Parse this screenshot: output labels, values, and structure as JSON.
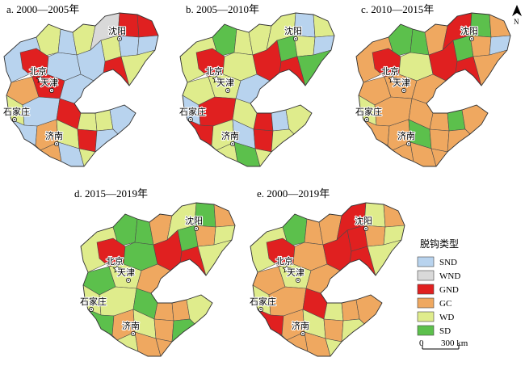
{
  "panels": [
    {
      "title": "a. 2000—2005年"
    },
    {
      "title": "b. 2005—2010年"
    },
    {
      "title": "c. 2010—2015年"
    },
    {
      "title": "d. 2015—2019年"
    },
    {
      "title": "e. 2000—2019年"
    }
  ],
  "cities": {
    "beijing": "北京",
    "tianjin": "天津",
    "shijiazhuang": "石家庄",
    "jinan": "济南",
    "shenyang": "沈阳"
  },
  "legend": {
    "title": "脱钩类型",
    "items": [
      {
        "label": "SND",
        "color": "#b8d3ee"
      },
      {
        "label": "WND",
        "color": "#d9d9d9"
      },
      {
        "label": "GND",
        "color": "#e02020"
      },
      {
        "label": "GC",
        "color": "#efa860"
      },
      {
        "label": "WD",
        "color": "#dfec8c"
      },
      {
        "label": "SD",
        "color": "#5cc04c"
      }
    ]
  },
  "scale_bar": {
    "zero": "0",
    "distance": "300 km"
  },
  "north_arrow": {
    "label": "N"
  },
  "region_colors": {
    "a": [
      "SND",
      "WD",
      "GND",
      "SND",
      "WD",
      "WND",
      "GND",
      "GND",
      "WD",
      "SND",
      "SND",
      "GND",
      "WD",
      "SND",
      "SND",
      "GC",
      "GND",
      "SND",
      "WD",
      "SND",
      "GND",
      "WD",
      "WD",
      "SND",
      "SND",
      "GC",
      "WD",
      "GND",
      "SND",
      "GC",
      "SND",
      "WD"
    ],
    "b": [
      "WD",
      "SD",
      "GND",
      "WD",
      "WD",
      "WD",
      "SND",
      "WD",
      "SD",
      "WD",
      "SND",
      "GND",
      "SD",
      "WD",
      "GND",
      "WD",
      "WD",
      "SND",
      "SND",
      "GND",
      "WD",
      "GND",
      "SND",
      "WD",
      "GND",
      "WD",
      "SND",
      "GND",
      "WD",
      "WD",
      "SD",
      "WD"
    ],
    "c": [
      "GC",
      "SD",
      "GND",
      "SD",
      "GC",
      "GND",
      "SD",
      "GC",
      "SD",
      "GC",
      "SND",
      "GND",
      "GC",
      "WD",
      "GND",
      "GC",
      "GC",
      "GC",
      "WD",
      "GC",
      "GC",
      "GC",
      "SD",
      "GC",
      "GC",
      "GC",
      "SD",
      "GC",
      "GC",
      "GC",
      "GC",
      "GC"
    ],
    "d": [
      "WD",
      "SD",
      "GND",
      "SD",
      "GC",
      "WD",
      "SD",
      "GC",
      "SD",
      "GC",
      "WD",
      "GND",
      "WD",
      "SD",
      "GND",
      "SD",
      "WD",
      "GC",
      "WD",
      "WD",
      "SD",
      "GC",
      "GC",
      "WD",
      "SD",
      "GC",
      "WD",
      "GC",
      "SD",
      "WD",
      "GC",
      "GC"
    ],
    "e": [
      "WD",
      "SD",
      "GND",
      "GC",
      "GC",
      "GND",
      "WD",
      "GC",
      "GND",
      "GC",
      "WD",
      "GND",
      "WD",
      "GC",
      "GND",
      "GC",
      "WD",
      "GC",
      "WD",
      "GC",
      "GND",
      "WD",
      "GC",
      "GC",
      "GND",
      "GC",
      "WD",
      "GC",
      "WD",
      "GC",
      "GC",
      "WD"
    ]
  }
}
